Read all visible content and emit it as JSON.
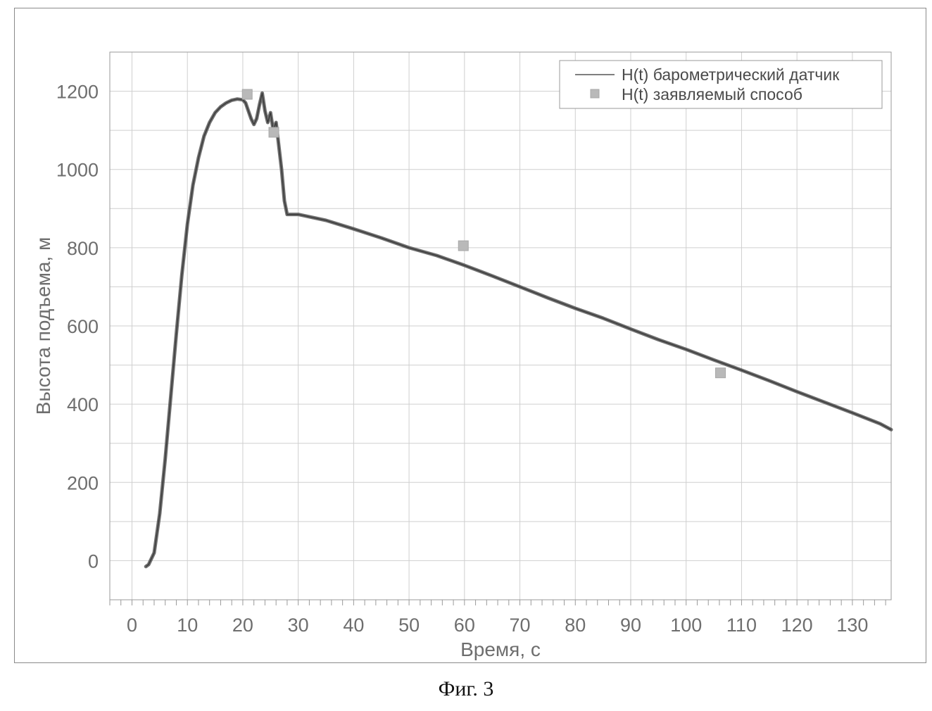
{
  "caption": "Фиг. 3",
  "chart_data": {
    "type": "line",
    "xlabel": "Время, с",
    "ylabel": "Высота подъема, м",
    "xlim": [
      -4,
      137
    ],
    "ylim": [
      -100,
      1300
    ],
    "xticks": [
      0,
      10,
      20,
      30,
      40,
      50,
      60,
      70,
      80,
      90,
      100,
      110,
      120,
      130
    ],
    "yticks": [
      0,
      200,
      400,
      600,
      800,
      1000,
      1200
    ],
    "grid": true,
    "legend_position": "top-right",
    "colors": {
      "line": "#555555",
      "marker": "#b9b9b9",
      "grid": "#cfcfcf",
      "axis_text": "#6e6e6e"
    },
    "series": [
      {
        "name": "H(t) барометрический датчик",
        "kind": "line",
        "x": [
          2.5,
          3,
          4,
          5,
          6,
          7,
          8,
          9,
          10,
          11,
          12,
          13,
          14,
          15,
          16,
          17,
          18,
          19,
          20,
          20.5,
          21,
          21.5,
          22,
          22.5,
          23,
          23.5,
          24,
          24.5,
          25,
          25.5,
          26,
          26.5,
          27,
          27.5,
          28,
          30,
          35,
          40,
          45,
          50,
          55,
          60,
          65,
          70,
          75,
          80,
          85,
          90,
          95,
          100,
          105,
          110,
          115,
          120,
          125,
          130,
          135,
          137
        ],
        "y": [
          -15,
          -10,
          20,
          120,
          260,
          420,
          580,
          730,
          860,
          960,
          1030,
          1085,
          1120,
          1145,
          1160,
          1170,
          1177,
          1180,
          1178,
          1170,
          1150,
          1130,
          1115,
          1130,
          1165,
          1195,
          1150,
          1120,
          1145,
          1100,
          1120,
          1060,
          1000,
          920,
          885,
          885,
          870,
          848,
          825,
          800,
          780,
          755,
          728,
          700,
          672,
          645,
          620,
          592,
          565,
          540,
          513,
          487,
          460,
          432,
          405,
          378,
          350,
          335
        ]
      },
      {
        "name": "H(t) заявляемый способ",
        "kind": "marker",
        "x": [
          20.8,
          25.6,
          59.8,
          106.2
        ],
        "y": [
          1192,
          1095,
          805,
          480
        ]
      }
    ]
  }
}
